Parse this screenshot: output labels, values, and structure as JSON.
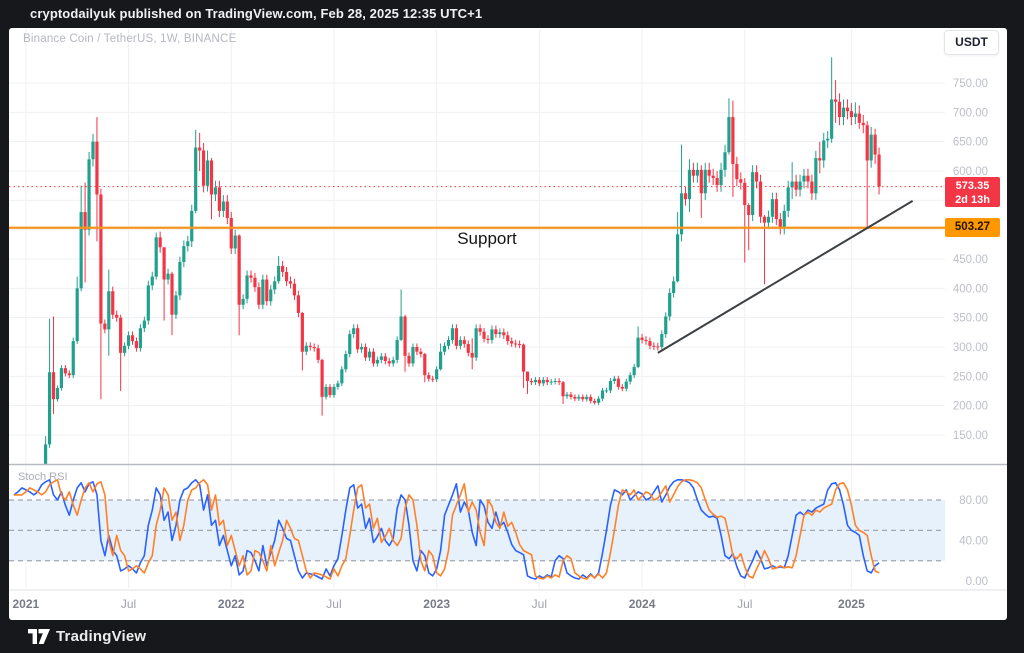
{
  "header": {
    "attribution": "cryptodailyuk published on TradingView.com, Feb 28, 2025 12:35 UTC+1"
  },
  "chart_header": {
    "symbol_title": "Binance Coin / TetherUS, 1W, BINANCE",
    "currency_button": "USDT"
  },
  "footer": {
    "brand": "TradingView"
  },
  "annotations": {
    "support_label": "Support"
  },
  "price_scale": {
    "ticks": [
      750,
      700,
      650,
      600,
      550,
      500,
      450,
      400,
      350,
      300,
      250,
      200,
      150
    ],
    "current_price_label": "573.35",
    "countdown_label": "2d 13h",
    "support_price_label": "503.27"
  },
  "time_scale": {
    "ticks": [
      {
        "label": "2021",
        "week": 3,
        "major": true
      },
      {
        "label": "Jul",
        "week": 29,
        "major": false
      },
      {
        "label": "2022",
        "week": 55,
        "major": true
      },
      {
        "label": "Jul",
        "week": 81,
        "major": false
      },
      {
        "label": "2023",
        "week": 107,
        "major": true
      },
      {
        "label": "Jul",
        "week": 133,
        "major": false
      },
      {
        "label": "2024",
        "week": 159,
        "major": true
      },
      {
        "label": "Jul",
        "week": 185,
        "major": false
      },
      {
        "label": "2025",
        "week": 212,
        "major": true
      }
    ]
  },
  "indicator_scale": {
    "ticks": [
      80,
      40,
      0
    ]
  },
  "colors": {
    "up": "#21a18d",
    "down": "#f23645",
    "support_line": "#f7941d",
    "support_badge": "#ff9800",
    "price_badge": "#f23645",
    "current_price_line": "#f23645",
    "k_line": "#2962ff",
    "d_line": "#ff8026",
    "band_fill": "#e7f1fc",
    "band_dash": "#9598a1",
    "trendline": "#3c4043",
    "grid": "#eef0f4",
    "axis_text": "#bcbfc7",
    "time_major": "#787b86",
    "time_minor": "#9fa2ab"
  },
  "chart_data": [
    {
      "type": "candlestick",
      "title": "Binance Coin / TetherUS, 1W, BINANCE",
      "timeframe": "1W",
      "x_range": "Dec 2020 - Feb 2025, one candle per week",
      "ylim": [
        99,
        798
      ],
      "y_ticks": [
        750,
        700,
        650,
        600,
        550,
        500,
        450,
        400,
        350,
        300,
        250,
        200,
        150
      ],
      "grid": true,
      "open_rule": "previous_close",
      "default_wick_pct": 0.02,
      "closes": [
        30,
        32,
        38,
        41,
        42,
        43,
        44,
        70,
        134,
        257,
        211,
        230,
        264,
        255,
        252,
        310,
        400,
        530,
        500,
        620,
        650,
        560,
        340,
        330,
        395,
        355,
        350,
        290,
        302,
        320,
        310,
        298,
        332,
        345,
        405,
        420,
        487,
        470,
        415,
        425,
        355,
        388,
        445,
        472,
        480,
        532,
        640,
        635,
        575,
        618,
        560,
        572,
        532,
        548,
        520,
        468,
        490,
        372,
        382,
        422,
        418,
        402,
        372,
        415,
        378,
        398,
        412,
        438,
        428,
        412,
        408,
        388,
        358,
        292,
        302,
        300,
        298,
        278,
        215,
        232,
        218,
        232,
        238,
        262,
        288,
        322,
        332,
        296,
        300,
        282,
        292,
        272,
        278,
        284,
        276,
        272,
        278,
        312,
        352,
        285,
        272,
        300,
        292,
        288,
        252,
        246,
        245,
        262,
        292,
        302,
        312,
        332,
        302,
        312,
        305,
        290,
        282,
        332,
        326,
        314,
        312,
        330,
        322,
        325,
        320,
        310,
        306,
        305,
        304,
        258,
        242,
        240,
        244,
        238,
        244,
        240,
        241,
        242,
        240,
        216,
        219,
        215,
        212,
        215,
        211,
        215,
        208,
        205,
        212,
        226,
        226,
        242,
        246,
        232,
        229,
        241,
        252,
        266,
        316,
        312,
        310,
        302,
        301,
        300,
        322,
        352,
        392,
        412,
        492,
        562,
        552,
        602,
        592,
        602,
        562,
        602,
        592,
        588,
        576,
        602,
        632,
        692,
        612,
        586,
        580,
        542,
        525,
        598,
        582,
        522,
        512,
        522,
        552,
        518,
        502,
        532,
        572,
        582,
        568,
        582,
        592,
        582,
        562,
        622,
        618,
        652,
        655,
        722,
        718,
        692,
        708,
        702,
        692,
        698,
        682,
        678,
        618,
        662,
        628,
        573.35
      ],
      "wick_overrides": {
        "7": [
          75,
          42
        ],
        "8": [
          148,
          68
        ],
        "9": [
          348,
          128
        ],
        "10": [
          352,
          186
        ],
        "16": [
          420,
          305
        ],
        "17": [
          575,
          395
        ],
        "18": [
          580,
          410
        ],
        "21": [
          692,
          480
        ],
        "22": [
          570,
          211
        ],
        "24": [
          432,
          285
        ],
        "27": [
          355,
          225
        ],
        "36": [
          495,
          415
        ],
        "38": [
          470,
          345
        ],
        "40": [
          428,
          320
        ],
        "46": [
          670,
          528
        ],
        "47": [
          665,
          600
        ],
        "49": [
          635,
          565
        ],
        "50": [
          622,
          518
        ],
        "57": [
          492,
          320
        ],
        "67": [
          455,
          408
        ],
        "73": [
          360,
          260
        ],
        "78": [
          280,
          183
        ],
        "98": [
          398,
          310
        ],
        "99": [
          355,
          258
        ],
        "104": [
          290,
          240
        ],
        "108": [
          306,
          260
        ],
        "116": [
          315,
          262
        ],
        "129": [
          306,
          230
        ],
        "130": [
          258,
          220
        ],
        "139": [
          242,
          203
        ],
        "147": [
          212,
          202
        ],
        "158": [
          335,
          264
        ],
        "168": [
          530,
          410
        ],
        "169": [
          645,
          480
        ],
        "171": [
          620,
          530
        ],
        "174": [
          610,
          520
        ],
        "181": [
          724,
          628
        ],
        "182": [
          720,
          556
        ],
        "185": [
          588,
          444
        ],
        "186": [
          545,
          465
        ],
        "190": [
          525,
          407
        ],
        "197": [
          615,
          552
        ],
        "204": [
          650,
          596
        ],
        "207": [
          794,
          648
        ],
        "208": [
          755,
          682
        ],
        "213": [
          717,
          680
        ],
        "214": [
          712,
          672
        ],
        "216": [
          685,
          504
        ],
        "218": [
          672,
          612
        ],
        "219": [
          640,
          560
        ]
      },
      "support_line": {
        "price": 503.27
      },
      "current_price_line": {
        "price": 573.35,
        "style": "dotted"
      },
      "trendline": {
        "from_week": 163,
        "from_price": 290,
        "to_week": 227.5,
        "to_price": 549
      },
      "annotation": "Support"
    },
    {
      "type": "line",
      "title": "Stoch RSI",
      "ylim": [
        0,
        100
      ],
      "y_ticks": [
        80,
        40,
        0
      ],
      "bands": {
        "upper": 80,
        "middle": 50,
        "lower": 20
      },
      "series": [
        {
          "name": "K",
          "values": [
            85,
            88,
            92,
            90,
            88,
            85,
            88,
            95,
            98,
            100,
            85,
            80,
            88,
            75,
            65,
            80,
            92,
            97,
            88,
            96,
            98,
            85,
            40,
            25,
            45,
            30,
            25,
            10,
            12,
            15,
            12,
            8,
            18,
            25,
            55,
            70,
            92,
            85,
            60,
            68,
            40,
            55,
            80,
            90,
            92,
            97,
            100,
            95,
            70,
            85,
            55,
            60,
            35,
            45,
            30,
            15,
            25,
            6,
            10,
            30,
            28,
            20,
            10,
            35,
            15,
            28,
            40,
            60,
            52,
            42,
            40,
            25,
            10,
            3,
            8,
            7,
            6,
            4,
            2,
            12,
            5,
            15,
            22,
            45,
            70,
            92,
            95,
            72,
            76,
            52,
            62,
            38,
            44,
            52,
            40,
            35,
            42,
            72,
            85,
            80,
            55,
            20,
            10,
            30,
            25,
            8,
            5,
            12,
            30,
            65,
            75,
            85,
            96,
            68,
            78,
            70,
            48,
            35,
            80,
            74,
            58,
            52,
            68,
            54,
            58,
            48,
            36,
            30,
            28,
            26,
            5,
            3,
            2,
            5,
            3,
            6,
            4,
            20,
            25,
            22,
            8,
            5,
            3,
            2,
            6,
            3,
            7,
            3,
            8,
            28,
            50,
            75,
            90,
            88,
            85,
            90,
            80,
            84,
            88,
            86,
            80,
            82,
            88,
            94,
            78,
            85,
            93,
            98,
            100,
            100,
            99,
            97,
            92,
            80,
            70,
            66,
            63,
            64,
            62,
            45,
            25,
            22,
            27,
            14,
            5,
            3,
            12,
            20,
            30,
            22,
            12,
            13,
            15,
            13,
            14,
            13,
            25,
            45,
            65,
            68,
            65,
            70,
            68,
            72,
            74,
            76,
            90,
            96,
            97,
            90,
            75,
            55,
            50,
            48,
            45,
            25,
            10,
            8,
            15,
            18
          ]
        },
        {
          "name": "D",
          "values": [
            85,
            85,
            85,
            88,
            92,
            90,
            88,
            85,
            88,
            95,
            98,
            100,
            85,
            80,
            88,
            75,
            65,
            80,
            92,
            97,
            88,
            96,
            98,
            85,
            40,
            25,
            45,
            30,
            25,
            10,
            12,
            15,
            12,
            8,
            18,
            25,
            55,
            70,
            92,
            85,
            60,
            68,
            40,
            55,
            80,
            90,
            92,
            97,
            100,
            95,
            70,
            85,
            55,
            60,
            35,
            45,
            30,
            15,
            25,
            6,
            10,
            30,
            28,
            20,
            10,
            35,
            15,
            28,
            40,
            60,
            52,
            42,
            40,
            25,
            10,
            3,
            8,
            7,
            6,
            4,
            2,
            12,
            5,
            15,
            22,
            45,
            70,
            92,
            95,
            72,
            76,
            52,
            62,
            38,
            44,
            52,
            40,
            35,
            42,
            72,
            85,
            80,
            55,
            20,
            10,
            30,
            25,
            8,
            5,
            12,
            30,
            65,
            75,
            85,
            96,
            68,
            78,
            70,
            48,
            35,
            80,
            74,
            58,
            52,
            68,
            54,
            58,
            48,
            36,
            30,
            28,
            26,
            5,
            3,
            2,
            5,
            3,
            6,
            4,
            20,
            25,
            22,
            8,
            5,
            3,
            2,
            6,
            3,
            7,
            3,
            8,
            28,
            50,
            75,
            90,
            88,
            85,
            90,
            80,
            84,
            88,
            86,
            80,
            82,
            88,
            94,
            78,
            85,
            93,
            98,
            100,
            100,
            99,
            97,
            92,
            80,
            70,
            66,
            63,
            64,
            62,
            45,
            25,
            22,
            27,
            14,
            5,
            3,
            12,
            20,
            30,
            22,
            12,
            13,
            15,
            13,
            14,
            13,
            25,
            45,
            65,
            68,
            65,
            70,
            68,
            72,
            74,
            76,
            90,
            96,
            97,
            90,
            75,
            55,
            50,
            48,
            45,
            25,
            10,
            8
          ]
        }
      ]
    }
  ]
}
